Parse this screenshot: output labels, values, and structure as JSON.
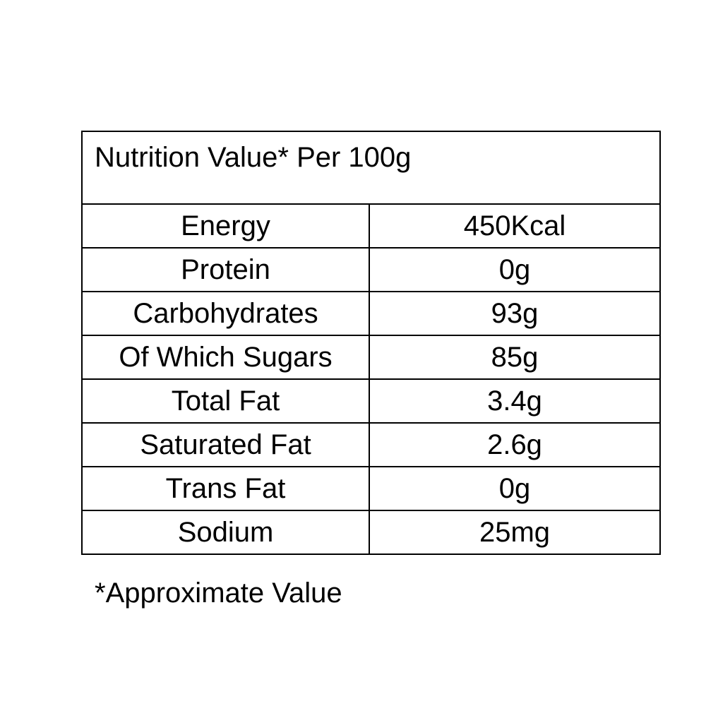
{
  "table": {
    "title": "Nutrition Value* Per 100g",
    "rows": [
      {
        "name": "Energy",
        "value": "450Kcal"
      },
      {
        "name": "Protein",
        "value": "0g"
      },
      {
        "name": "Carbohydrates",
        "value": "93g"
      },
      {
        "name": "Of Which Sugars",
        "value": "85g"
      },
      {
        "name": "Total Fat",
        "value": "3.4g"
      },
      {
        "name": "Saturated Fat",
        "value": "2.6g"
      },
      {
        "name": "Trans Fat",
        "value": "0g"
      },
      {
        "name": "Sodium",
        "value": "25mg"
      }
    ]
  },
  "footnote": "*Approximate Value"
}
